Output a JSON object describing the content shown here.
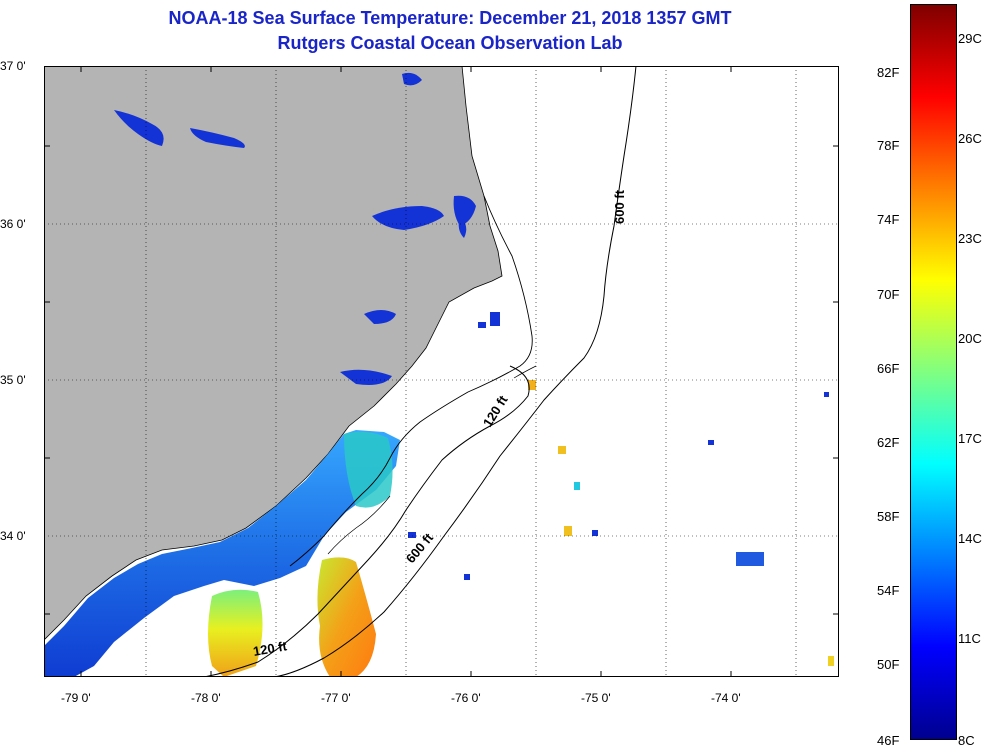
{
  "title": {
    "line1": "NOAA-18 Sea Surface Temperature:  December 21, 2018 1357 GMT",
    "line2": "Rutgers Coastal Ocean Observation Lab"
  },
  "map": {
    "lat_labels": [
      "37 0'",
      "36 0'",
      "35 0'",
      "34 0'"
    ],
    "lon_labels": [
      "-79 0'",
      "-78 0'",
      "-77 0'",
      "-76 0'",
      "-75 0'",
      "-74 0'"
    ],
    "contour_labels": {
      "c600_north": "600 ft",
      "c600_south": "600 ft",
      "c120_east": "120 ft",
      "c120_south": "120 ft"
    },
    "colors": {
      "land": "#b4b4b4",
      "background": "#ffffff",
      "grid": "#000000",
      "title": "#1a25c8"
    }
  },
  "colorbar": {
    "fahrenheit": [
      "82F",
      "78F",
      "74F",
      "70F",
      "66F",
      "62F",
      "58F",
      "54F",
      "50F",
      "46F"
    ],
    "celsius": [
      "29C",
      "26C",
      "23C",
      "20C",
      "17C",
      "14C",
      "11C",
      "8C"
    ],
    "colors": [
      "#7f0000",
      "#ff0000",
      "#ff8000",
      "#ffff00",
      "#80ff80",
      "#00ffff",
      "#0080ff",
      "#0000ff",
      "#00008f"
    ]
  }
}
